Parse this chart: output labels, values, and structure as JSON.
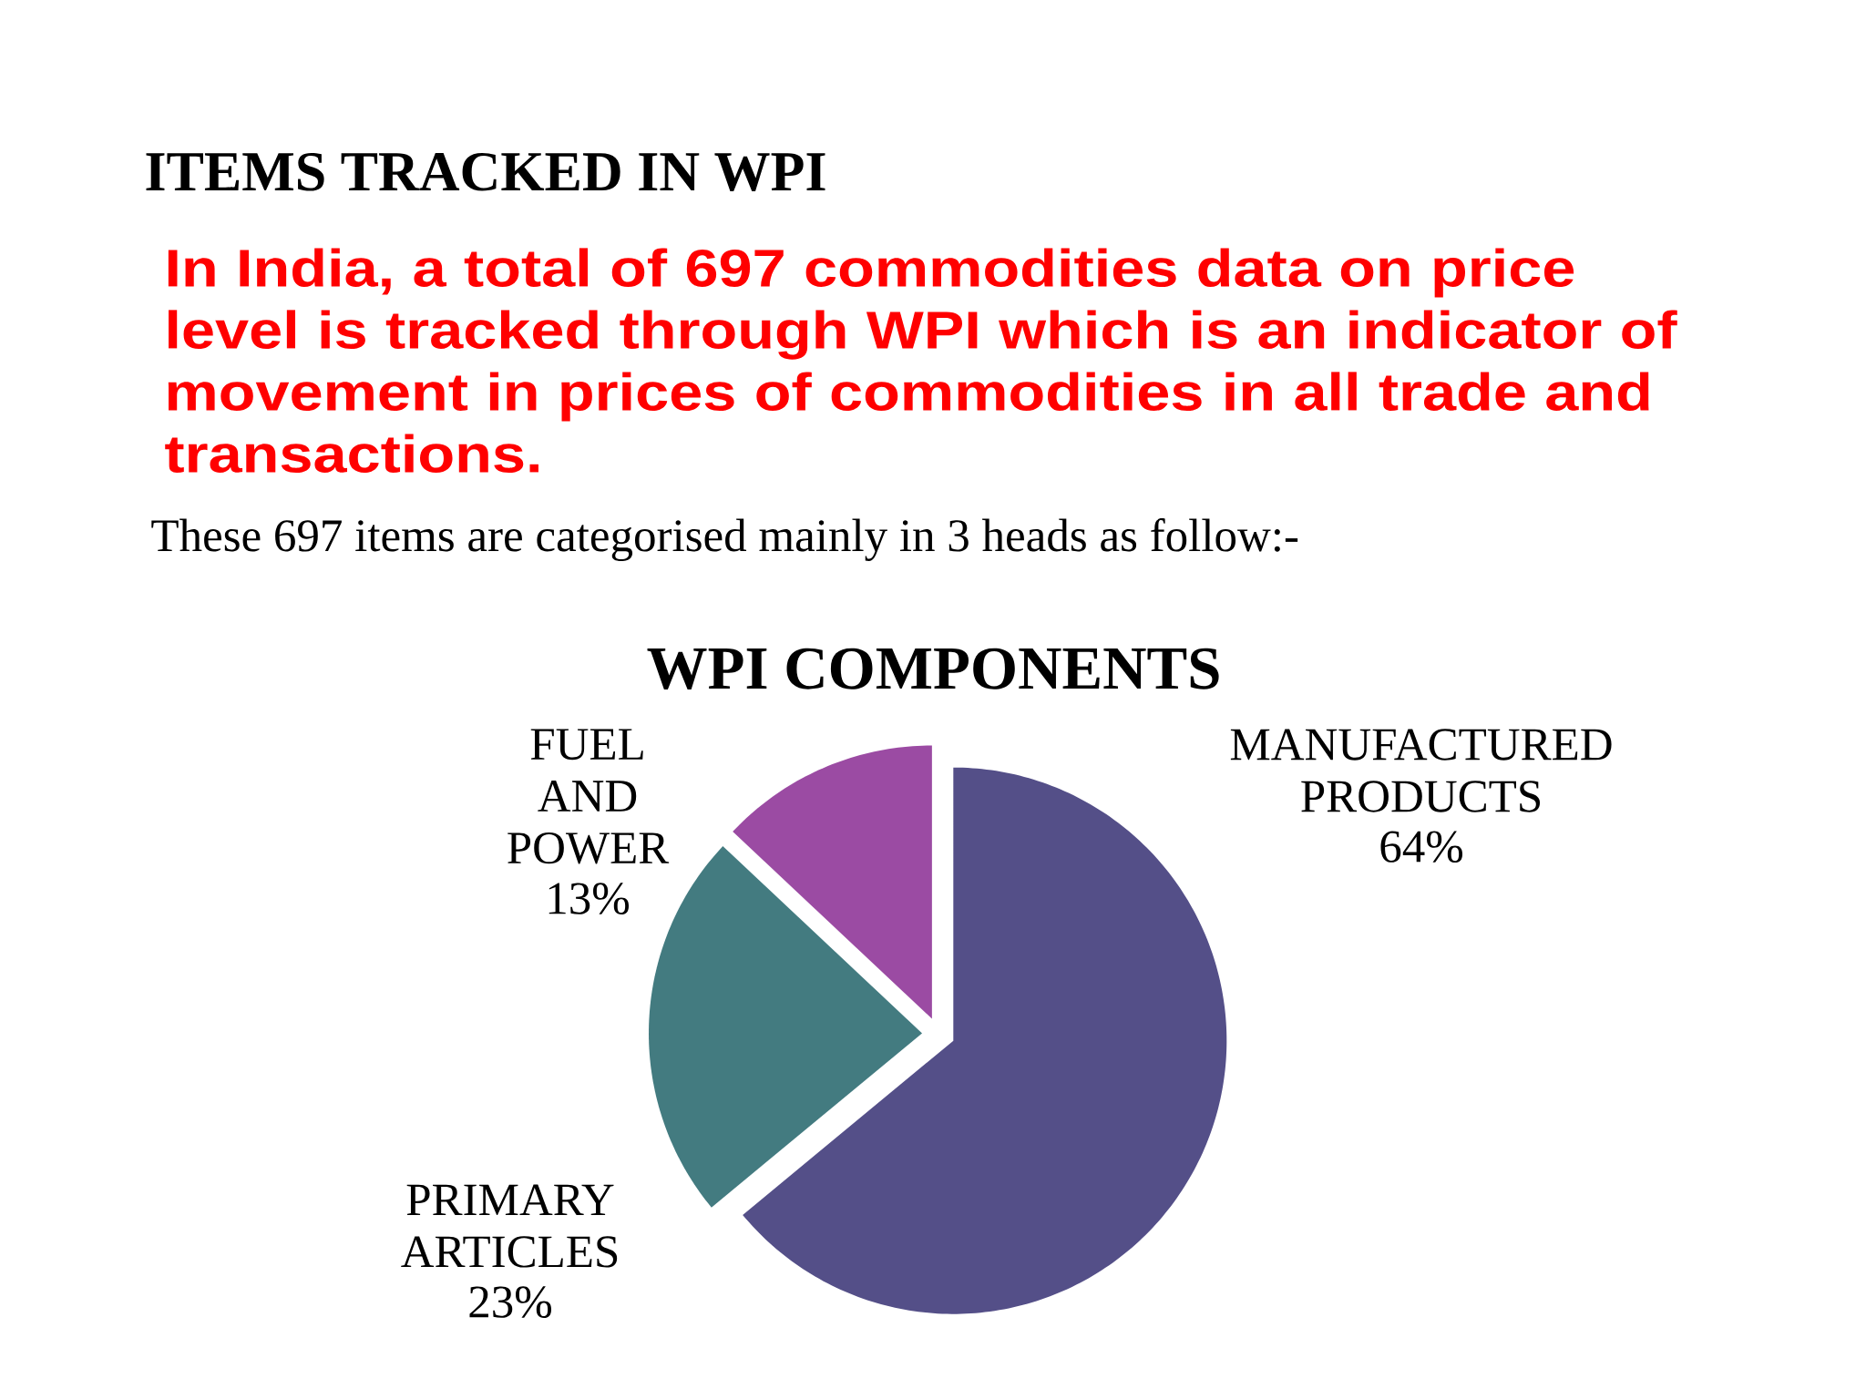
{
  "chart_data": {
    "type": "pie",
    "title": "WPI COMPONENTS",
    "categories": [
      "MANUFACTURED PRODUCTS",
      "PRIMARY ARTICLES",
      "FUEL AND POWER"
    ],
    "values": [
      64,
      23,
      13
    ],
    "value_labels": [
      "64%",
      "23%",
      "13%"
    ],
    "colors": [
      "#544f88",
      "#437b80",
      "#9b4ba3"
    ],
    "annotations": [
      "ITEMS TRACKED IN WPI",
      "In India, a total of 697 commodities data on price level is tracked through WPI which is an indicator of movement in prices of commodities in all trade and transactions.",
      "These 697 items are categorised mainly in 3 heads as follow:-"
    ]
  }
}
